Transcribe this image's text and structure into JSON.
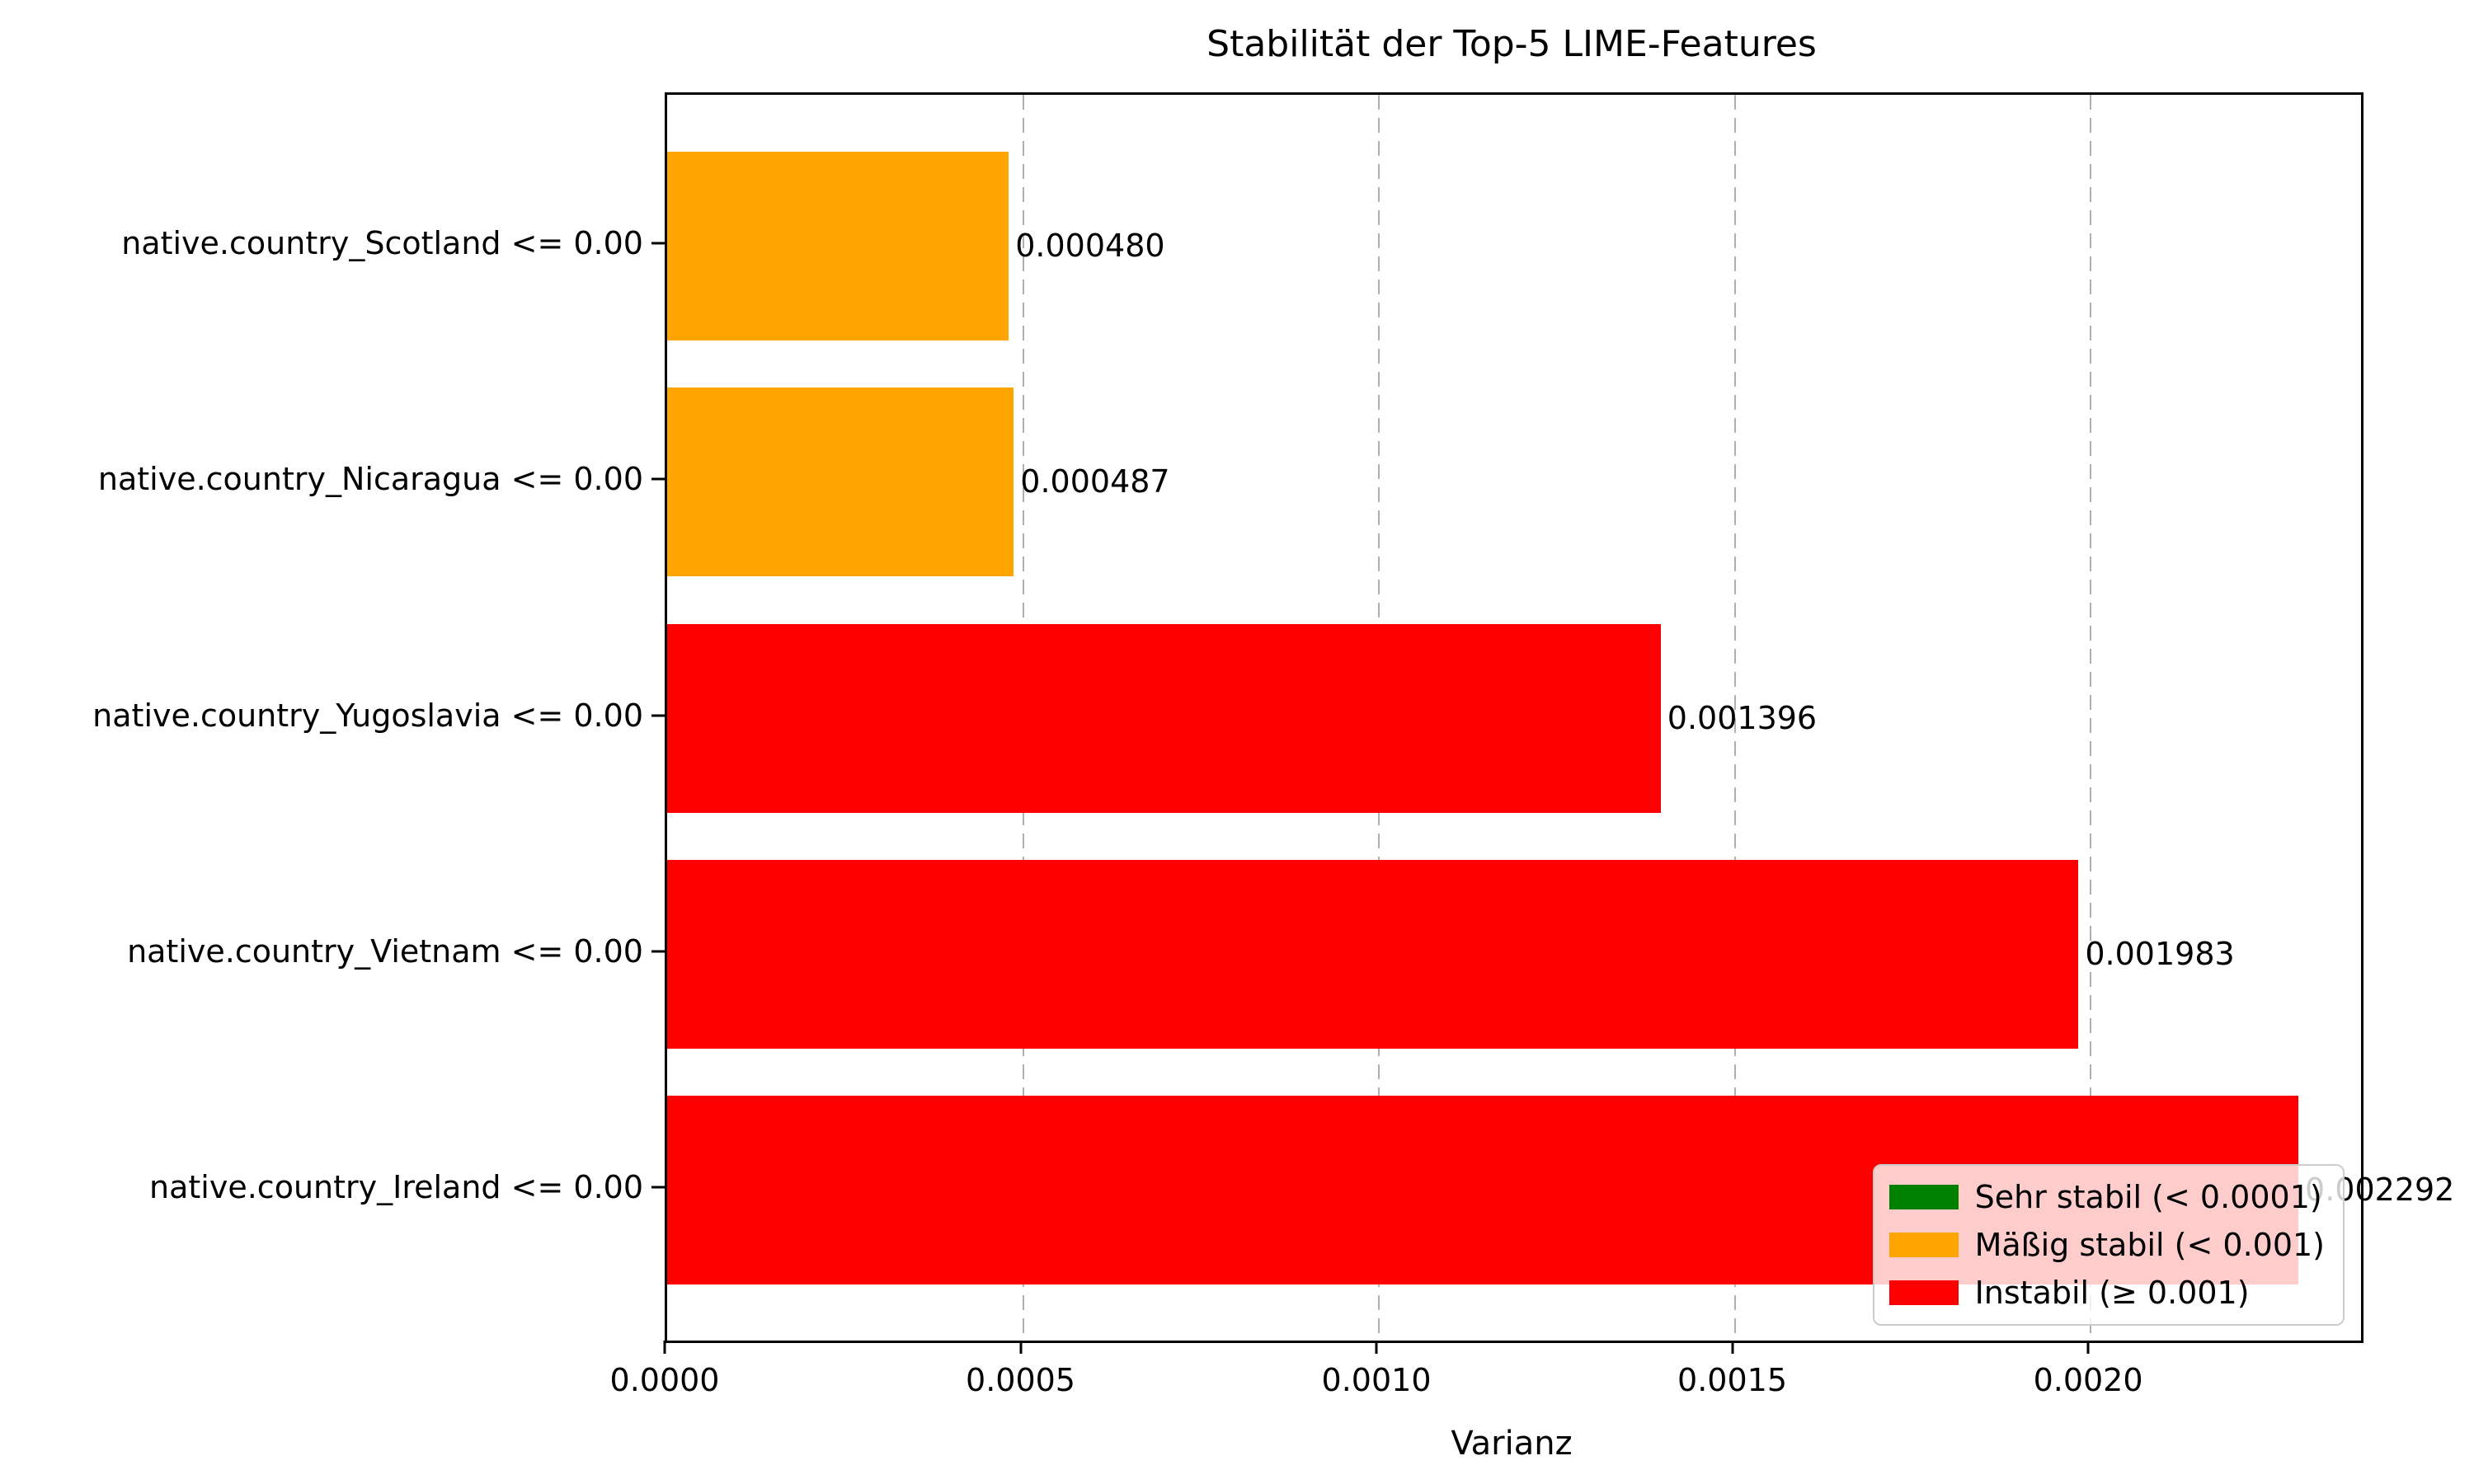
{
  "figure": {
    "background": "#ffffff"
  },
  "chart_data": {
    "type": "bar",
    "orientation": "horizontal",
    "title": "Stabilität der Top-5 LIME-Features",
    "xlabel": "Varianz",
    "categories": [
      "native.country_Scotland <= 0.00",
      "native.country_Nicaragua <= 0.00",
      "native.country_Yugoslavia <= 0.00",
      "native.country_Vietnam <= 0.00",
      "native.country_Ireland <= 0.00"
    ],
    "values": [
      0.00048,
      0.000487,
      0.001396,
      0.001983,
      0.002292
    ],
    "value_labels": [
      "0.000480",
      "0.000487",
      "0.001396",
      "0.001983",
      "0.002292"
    ],
    "bar_colors": [
      "#FFA500",
      "#FFA500",
      "#FF0000",
      "#FF0000",
      "#FF0000"
    ],
    "xlim": [
      0,
      0.00238
    ],
    "xticks": [
      {
        "value": 0.0,
        "label": "0.0000"
      },
      {
        "value": 0.0005,
        "label": "0.0005"
      },
      {
        "value": 0.001,
        "label": "0.0010"
      },
      {
        "value": 0.0015,
        "label": "0.0015"
      },
      {
        "value": 0.002,
        "label": "0.0020"
      }
    ],
    "grid": {
      "axis": "x",
      "style": "dashed",
      "color": "#b0b0b0"
    },
    "legend": {
      "position": "lower right",
      "items": [
        {
          "label": "Sehr stabil (< 0.0001)",
          "color": "#008000"
        },
        {
          "label": "Mäßig stabil (< 0.001)",
          "color": "#FFA500"
        },
        {
          "label": "Instabil (≥ 0.001)",
          "color": "#FF0000"
        }
      ]
    }
  }
}
